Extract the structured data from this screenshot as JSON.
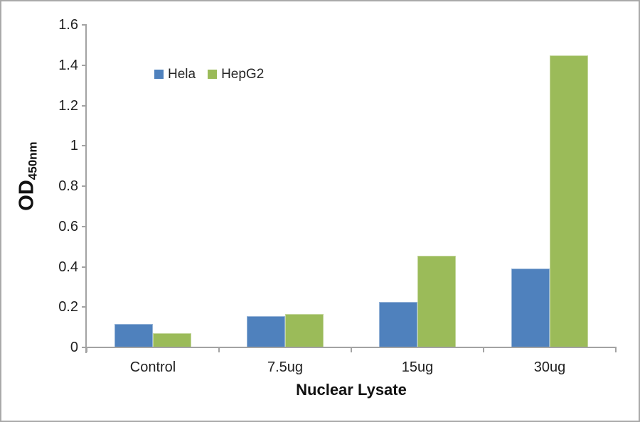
{
  "figure": {
    "background": "#ffffff",
    "frame_color": "#a9a9a9",
    "axis_color": "#a3a3a3",
    "text_color": "#1f1f1f"
  },
  "chart_data": {
    "type": "bar",
    "title": "",
    "categories": [
      "Control",
      "7.5ug",
      "15ug",
      "30ug"
    ],
    "series": [
      {
        "name": "Hela",
        "color": "#4F81BD",
        "border_color": "#95B3D7",
        "values": [
          0.115,
          0.155,
          0.225,
          0.39
        ]
      },
      {
        "name": "HepG2",
        "color": "#9BBB59",
        "border_color": "#C3D69B",
        "values": [
          0.07,
          0.165,
          0.455,
          1.45
        ]
      }
    ],
    "xlabel": "Nuclear Lysate",
    "ylabel": {
      "main": "OD",
      "subscript": "450nm"
    },
    "ylim": [
      0,
      1.6
    ],
    "ytick_step": 0.2,
    "yticks": [
      "0",
      "0.2",
      "0.4",
      "0.6",
      "0.8",
      "1",
      "1.2",
      "1.4",
      "1.6"
    ],
    "grid": false,
    "legend_position": "inside-top-left"
  }
}
